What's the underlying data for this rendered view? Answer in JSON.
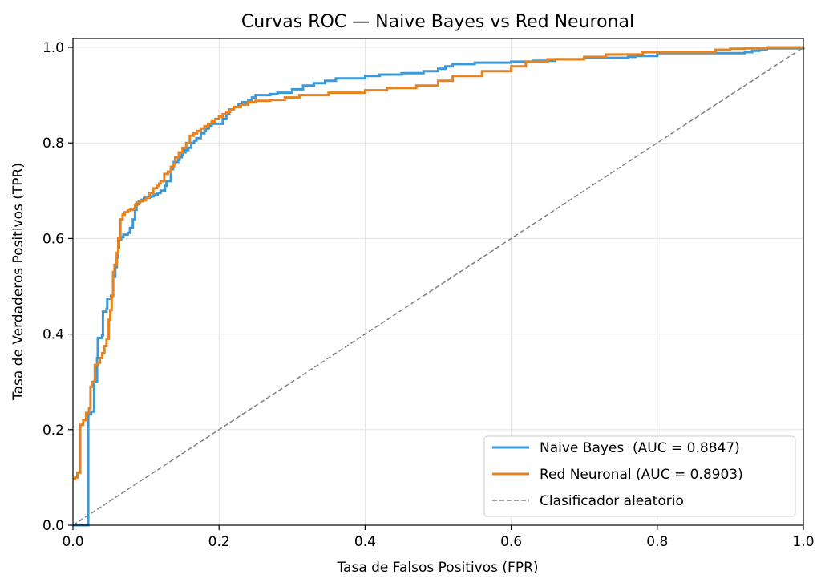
{
  "chart_data": {
    "type": "line",
    "title": "Curvas ROC — Naive Bayes vs Red Neuronal",
    "xlabel": "Tasa de Falsos Positivos (FPR)",
    "ylabel": "Tasa de Verdaderos Positivos (TPR)",
    "xlim": [
      0.0,
      1.0
    ],
    "ylim": [
      0.0,
      1.02
    ],
    "xticks": [
      0.0,
      0.2,
      0.4,
      0.6,
      0.8,
      1.0
    ],
    "xtick_labels": [
      "0.0",
      "0.2",
      "0.4",
      "0.6",
      "0.8",
      "1.0"
    ],
    "yticks": [
      0.0,
      0.2,
      0.4,
      0.6,
      0.8,
      1.0
    ],
    "ytick_labels": [
      "0.0",
      "0.2",
      "0.4",
      "0.6",
      "0.8",
      "1.0"
    ],
    "grid": true,
    "legend_position": "lower-right",
    "series": [
      {
        "name": "Naive Bayes  (AUC = 0.8847)",
        "color": "#3a9ad9",
        "style": "solid",
        "x": [
          0.0,
          0.021,
          0.025,
          0.029,
          0.033,
          0.034,
          0.04,
          0.041,
          0.046,
          0.047,
          0.052,
          0.055,
          0.058,
          0.06,
          0.062,
          0.063,
          0.066,
          0.069,
          0.075,
          0.078,
          0.082,
          0.085,
          0.087,
          0.09,
          0.094,
          0.097,
          0.099,
          0.104,
          0.107,
          0.11,
          0.113,
          0.116,
          0.12,
          0.126,
          0.128,
          0.134,
          0.137,
          0.138,
          0.144,
          0.146,
          0.149,
          0.151,
          0.154,
          0.158,
          0.162,
          0.166,
          0.169,
          0.175,
          0.18,
          0.182,
          0.186,
          0.19,
          0.205,
          0.21,
          0.214,
          0.22,
          0.226,
          0.232,
          0.24,
          0.245,
          0.25,
          0.26,
          0.27,
          0.28,
          0.3,
          0.315,
          0.33,
          0.345,
          0.36,
          0.4,
          0.42,
          0.45,
          0.48,
          0.5,
          0.51,
          0.52,
          0.55,
          0.6,
          0.63,
          0.66,
          0.7,
          0.76,
          0.77,
          0.8,
          0.8,
          0.92,
          0.93,
          0.94,
          0.95,
          1.0
        ],
        "y": [
          0.0,
          0.232,
          0.238,
          0.3,
          0.35,
          0.392,
          0.397,
          0.447,
          0.453,
          0.474,
          0.48,
          0.52,
          0.54,
          0.56,
          0.58,
          0.598,
          0.603,
          0.608,
          0.612,
          0.622,
          0.64,
          0.66,
          0.672,
          0.678,
          0.681,
          0.684,
          0.686,
          0.687,
          0.688,
          0.69,
          0.692,
          0.695,
          0.7,
          0.71,
          0.72,
          0.745,
          0.75,
          0.76,
          0.765,
          0.77,
          0.775,
          0.78,
          0.785,
          0.79,
          0.8,
          0.805,
          0.81,
          0.82,
          0.825,
          0.83,
          0.836,
          0.84,
          0.85,
          0.86,
          0.87,
          0.875,
          0.88,
          0.885,
          0.89,
          0.895,
          0.9,
          0.9,
          0.902,
          0.905,
          0.912,
          0.92,
          0.925,
          0.93,
          0.935,
          0.94,
          0.943,
          0.946,
          0.95,
          0.955,
          0.96,
          0.965,
          0.968,
          0.97,
          0.972,
          0.975,
          0.978,
          0.98,
          0.982,
          0.985,
          0.988,
          0.99,
          0.993,
          0.995,
          0.998,
          1.0
        ],
        "width": 3
      },
      {
        "name": "Red Neuronal (AUC = 0.8903)",
        "color": "#e8821e",
        "style": "solid",
        "x": [
          0.0,
          0.003,
          0.006,
          0.01,
          0.014,
          0.018,
          0.022,
          0.024,
          0.026,
          0.03,
          0.034,
          0.037,
          0.04,
          0.043,
          0.046,
          0.049,
          0.051,
          0.053,
          0.055,
          0.057,
          0.06,
          0.062,
          0.065,
          0.068,
          0.071,
          0.075,
          0.078,
          0.082,
          0.085,
          0.088,
          0.092,
          0.096,
          0.1,
          0.105,
          0.11,
          0.115,
          0.118,
          0.12,
          0.125,
          0.13,
          0.134,
          0.138,
          0.14,
          0.145,
          0.15,
          0.155,
          0.16,
          0.165,
          0.17,
          0.175,
          0.18,
          0.185,
          0.19,
          0.195,
          0.2,
          0.205,
          0.21,
          0.215,
          0.22,
          0.23,
          0.24,
          0.25,
          0.27,
          0.29,
          0.31,
          0.35,
          0.4,
          0.43,
          0.47,
          0.5,
          0.52,
          0.56,
          0.6,
          0.62,
          0.65,
          0.7,
          0.73,
          0.78,
          0.85,
          0.88,
          0.9,
          0.92,
          0.95,
          1.0
        ],
        "y": [
          0.097,
          0.1,
          0.11,
          0.21,
          0.22,
          0.235,
          0.245,
          0.29,
          0.3,
          0.335,
          0.34,
          0.35,
          0.36,
          0.375,
          0.39,
          0.43,
          0.45,
          0.48,
          0.53,
          0.545,
          0.57,
          0.6,
          0.64,
          0.65,
          0.655,
          0.658,
          0.66,
          0.662,
          0.67,
          0.675,
          0.678,
          0.68,
          0.685,
          0.695,
          0.705,
          0.71,
          0.715,
          0.72,
          0.735,
          0.74,
          0.75,
          0.755,
          0.77,
          0.78,
          0.79,
          0.8,
          0.815,
          0.82,
          0.825,
          0.83,
          0.835,
          0.84,
          0.845,
          0.85,
          0.855,
          0.86,
          0.865,
          0.87,
          0.875,
          0.88,
          0.885,
          0.888,
          0.89,
          0.895,
          0.9,
          0.905,
          0.91,
          0.915,
          0.92,
          0.93,
          0.94,
          0.95,
          0.96,
          0.97,
          0.975,
          0.98,
          0.985,
          0.99,
          0.99,
          0.995,
          0.997,
          0.998,
          1.0,
          1.0
        ],
        "width": 3
      },
      {
        "name": "Clasificador aleatorio",
        "color": "#808080",
        "style": "dashed",
        "x": [
          0.0,
          1.0
        ],
        "y": [
          0.0,
          1.0
        ],
        "width": 1.5
      }
    ]
  }
}
